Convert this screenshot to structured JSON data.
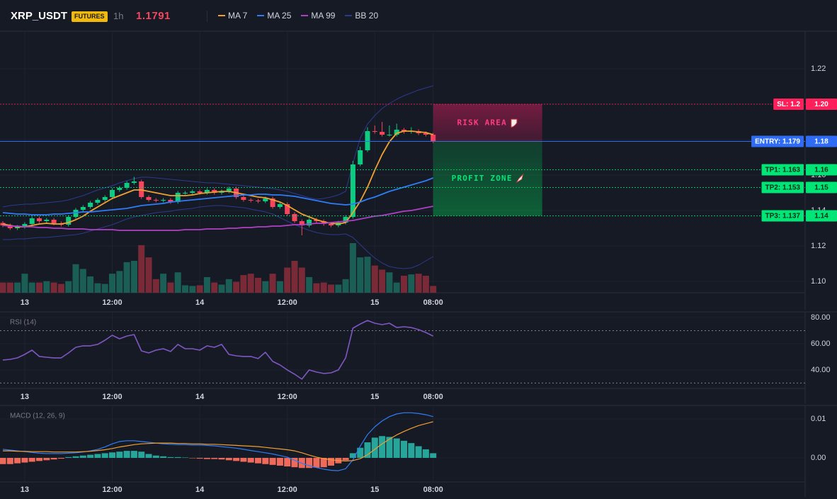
{
  "header": {
    "symbol": "XRP_USDT",
    "badge": "FUTURES",
    "interval": "1h",
    "last_price": 1.1791
  },
  "chart_data": [
    {
      "type": "candlestick",
      "categories": [
        null,
        null,
        null,
        "13",
        null,
        null,
        null,
        null,
        null,
        null,
        null,
        null,
        null,
        null,
        null,
        "12:00",
        null,
        null,
        null,
        null,
        null,
        null,
        null,
        null,
        null,
        null,
        null,
        "14",
        null,
        null,
        null,
        null,
        null,
        null,
        null,
        null,
        null,
        null,
        null,
        "12:00",
        null,
        null,
        null,
        null,
        null,
        null,
        null,
        null,
        null,
        null,
        null,
        "15",
        null,
        null,
        null,
        null,
        null,
        null,
        null,
        "08:00"
      ],
      "open": [
        1.133,
        1.1316,
        1.13,
        1.1308,
        1.1324,
        1.1356,
        1.134,
        1.1348,
        1.1328,
        1.132,
        1.1364,
        1.1404,
        1.142,
        1.1444,
        1.146,
        1.1476,
        1.1516,
        1.1528,
        1.1556,
        1.1564,
        1.1476,
        1.146,
        1.1456,
        1.146,
        1.1448,
        1.15,
        1.15,
        1.1508,
        1.15,
        1.1516,
        1.15,
        1.1508,
        1.1524,
        1.1476,
        1.146,
        1.1456,
        1.1452,
        1.1468,
        1.142,
        1.1436,
        1.138,
        1.134,
        1.1316,
        1.1348,
        1.134,
        1.1324,
        1.1316,
        1.1332,
        1.1364,
        1.166,
        1.174,
        1.1848,
        1.1844,
        1.1828,
        1.1828,
        1.1856,
        1.1844,
        1.1848,
        1.1836,
        1.1828
      ],
      "high": [
        1.134,
        1.1326,
        1.1318,
        1.1334,
        1.1366,
        1.1366,
        1.1358,
        1.1358,
        1.1338,
        1.1374,
        1.1414,
        1.143,
        1.1454,
        1.147,
        1.1486,
        1.1526,
        1.1538,
        1.1566,
        1.159,
        1.1574,
        1.1486,
        1.147,
        1.147,
        1.147,
        1.151,
        1.151,
        1.1518,
        1.1518,
        1.1526,
        1.1526,
        1.1518,
        1.1534,
        1.1534,
        1.1486,
        1.147,
        1.1466,
        1.1478,
        1.1478,
        1.1446,
        1.1446,
        1.139,
        1.135,
        1.1358,
        1.1358,
        1.135,
        1.1334,
        1.1342,
        1.1374,
        1.168,
        1.176,
        1.187,
        1.188,
        1.19,
        1.188,
        1.189,
        1.1866,
        1.187,
        1.1858,
        1.1846,
        1.1838
      ],
      "low": [
        1.1306,
        1.129,
        1.129,
        1.1298,
        1.1314,
        1.133,
        1.133,
        1.1318,
        1.131,
        1.131,
        1.1354,
        1.1394,
        1.141,
        1.1434,
        1.145,
        1.1466,
        1.1506,
        1.1518,
        1.1546,
        1.1466,
        1.145,
        1.1446,
        1.1446,
        1.1438,
        1.1438,
        1.149,
        1.149,
        1.149,
        1.149,
        1.149,
        1.149,
        1.1498,
        1.1466,
        1.145,
        1.1446,
        1.1442,
        1.1442,
        1.141,
        1.141,
        1.137,
        1.133,
        1.126,
        1.1306,
        1.133,
        1.1314,
        1.1306,
        1.1306,
        1.1322,
        1.1354,
        1.165,
        1.173,
        1.1834,
        1.1818,
        1.1818,
        1.1818,
        1.1834,
        1.1834,
        1.1826,
        1.1818,
        1.1781
      ],
      "close": [
        1.1316,
        1.13,
        1.1308,
        1.1324,
        1.1356,
        1.134,
        1.1348,
        1.1328,
        1.132,
        1.1364,
        1.1404,
        1.142,
        1.1444,
        1.146,
        1.1476,
        1.1516,
        1.1528,
        1.1556,
        1.1564,
        1.1476,
        1.146,
        1.1456,
        1.146,
        1.1448,
        1.15,
        1.15,
        1.1508,
        1.15,
        1.1516,
        1.15,
        1.1508,
        1.1524,
        1.1476,
        1.146,
        1.1456,
        1.1452,
        1.1468,
        1.142,
        1.1436,
        1.138,
        1.134,
        1.1316,
        1.1348,
        1.134,
        1.1324,
        1.1316,
        1.1332,
        1.1364,
        1.166,
        1.174,
        1.1848,
        1.1844,
        1.1828,
        1.1828,
        1.1856,
        1.1844,
        1.1848,
        1.1836,
        1.1828,
        1.1791
      ],
      "up_color": "#0ecb81",
      "down_color": "#f6465d",
      "volume": [
        15,
        15,
        15,
        28,
        15,
        15,
        17,
        15,
        13,
        17,
        42,
        35,
        24,
        14,
        13,
        28,
        32,
        45,
        47,
        70,
        52,
        20,
        28,
        15,
        30,
        11,
        10,
        11,
        23,
        15,
        12,
        20,
        16,
        26,
        28,
        22,
        17,
        28,
        17,
        37,
        47,
        37,
        23,
        14,
        15,
        12,
        12,
        20,
        73,
        52,
        53,
        40,
        34,
        30,
        15,
        25,
        27,
        28,
        25,
        10
      ],
      "volume_up_color": "#1b5e55",
      "volume_down_color": "#7a2a37",
      "series": [
        {
          "name": "MA 7",
          "color": "#f0a030",
          "values": [
            1.1324,
            1.1316,
            1.1308,
            1.1308,
            1.1316,
            1.1324,
            1.1328,
            1.1324,
            1.1324,
            1.1332,
            1.1348,
            1.1368,
            1.1396,
            1.142,
            1.1444,
            1.1468,
            1.1484,
            1.15,
            1.1516,
            1.1516,
            1.1508,
            1.15,
            1.1492,
            1.1484,
            1.1484,
            1.1484,
            1.1488,
            1.1496,
            1.15,
            1.1504,
            1.1508,
            1.1508,
            1.15,
            1.1492,
            1.1484,
            1.1476,
            1.1472,
            1.146,
            1.1448,
            1.1428,
            1.1404,
            1.138,
            1.1364,
            1.1348,
            1.1336,
            1.1328,
            1.1324,
            1.1332,
            1.1388,
            1.1452,
            1.1532,
            1.1628,
            1.1716,
            1.1788,
            1.1836,
            1.1848,
            1.1848,
            1.1844,
            1.184,
            1.1828
          ]
        },
        {
          "name": "MA 25",
          "color": "#2f7cf6",
          "values": [
            1.1388,
            1.1384,
            1.138,
            1.138,
            1.1376,
            1.1376,
            1.1376,
            1.138,
            1.138,
            1.1384,
            1.1388,
            1.1392,
            1.1392,
            1.1396,
            1.14,
            1.1404,
            1.1408,
            1.1412,
            1.142,
            1.1428,
            1.1432,
            1.1436,
            1.144,
            1.1448,
            1.1452,
            1.1456,
            1.146,
            1.1464,
            1.1468,
            1.1472,
            1.1476,
            1.148,
            1.1484,
            1.1488,
            1.1488,
            1.1492,
            1.1492,
            1.1488,
            1.1488,
            1.1484,
            1.148,
            1.1472,
            1.1464,
            1.1456,
            1.1448,
            1.144,
            1.1436,
            1.1432,
            1.1436,
            1.1448,
            1.1464,
            1.1476,
            1.1492,
            1.1508,
            1.152,
            1.1532,
            1.1544,
            1.1556,
            1.1568,
            1.1584
          ]
        },
        {
          "name": "MA 99",
          "color": "#b03fc6",
          "values": [
            1.1316,
            1.1312,
            1.1312,
            1.1308,
            1.1308,
            1.1304,
            1.1304,
            1.13,
            1.13,
            1.1296,
            1.1296,
            1.1296,
            1.1292,
            1.1292,
            1.1292,
            1.1292,
            1.1288,
            1.1288,
            1.1288,
            1.1288,
            1.1288,
            1.1288,
            1.1288,
            1.1288,
            1.1288,
            1.1292,
            1.1292,
            1.1292,
            1.1296,
            1.1296,
            1.1296,
            1.13,
            1.13,
            1.1304,
            1.1304,
            1.1308,
            1.1308,
            1.1312,
            1.1312,
            1.1316,
            1.132,
            1.132,
            1.1324,
            1.1328,
            1.1328,
            1.1332,
            1.1336,
            1.134,
            1.1344,
            1.1352,
            1.136,
            1.1368,
            1.1372,
            1.138,
            1.1388,
            1.1396,
            1.14,
            1.1408,
            1.1416,
            1.1424
          ]
        },
        {
          "name": "BB 20",
          "color": "#2c3a8c",
          "upper": [
            1.142,
            1.1428,
            1.1432,
            1.1436,
            1.1436,
            1.144,
            1.1444,
            1.1448,
            1.1452,
            1.146,
            1.1472,
            1.1484,
            1.15,
            1.1516,
            1.1528,
            1.154,
            1.1556,
            1.1568,
            1.158,
            1.1588,
            1.1588,
            1.1584,
            1.158,
            1.1576,
            1.1572,
            1.1568,
            1.1564,
            1.156,
            1.1556,
            1.1556,
            1.1552,
            1.1548,
            1.1544,
            1.154,
            1.1536,
            1.1532,
            1.1528,
            1.1524,
            1.1516,
            1.1508,
            1.1496,
            1.1484,
            1.1472,
            1.1464,
            1.1468,
            1.1476,
            1.1488,
            1.1508,
            1.1668,
            1.1808,
            1.1888,
            1.1936,
            1.1976,
            1.2004,
            1.2028,
            1.2048,
            1.2064,
            1.208,
            1.2092,
            1.2104
          ],
          "lower": [
            1.1236,
            1.1236,
            1.124,
            1.124,
            1.1244,
            1.1248,
            1.1248,
            1.1252,
            1.1256,
            1.126,
            1.1264,
            1.1272,
            1.1284,
            1.1296,
            1.1308,
            1.132,
            1.1336,
            1.1352,
            1.1364,
            1.1372,
            1.138,
            1.1388,
            1.1392,
            1.1396,
            1.1404,
            1.1408,
            1.1412,
            1.142,
            1.1424,
            1.1428,
            1.1428,
            1.1424,
            1.142,
            1.1416,
            1.1408,
            1.14,
            1.1392,
            1.138,
            1.136,
            1.134,
            1.132,
            1.1304,
            1.1288,
            1.1276,
            1.1268,
            1.1264,
            1.1264,
            1.1268,
            1.1248,
            1.1208,
            1.1168,
            1.1132,
            1.1104,
            1.1084,
            1.1076,
            1.1072,
            1.1076,
            1.1092,
            1.1116,
            1.114
          ]
        }
      ],
      "ylim": [
        1.0936,
        1.2408
      ],
      "yticks": [
        {
          "value": 1.1,
          "label": "1.10"
        },
        1.12,
        1.14,
        1.16,
        1.18,
        {
          "value": 1.2,
          "label": "1.20"
        },
        1.22
      ],
      "grid": true,
      "levels": [
        {
          "label": "SL: 1.2",
          "value": 1.2,
          "value_label": "1.20",
          "color": "#ff1f5a",
          "style": "dotted"
        },
        {
          "label": "ENTRY: 1.179",
          "value": 1.179,
          "value_label": "1.18",
          "color": "#2f6cf6",
          "style": "solid"
        },
        {
          "label": "TP1: 1.163",
          "value": 1.163,
          "value_label": "1.16",
          "color": "#00e676",
          "style": "dotted"
        },
        {
          "label": "TP2: 1.153",
          "value": 1.153,
          "value_label": "1.15",
          "color": "#00e676",
          "style": "dotted"
        },
        {
          "label": "TP3: 1.137",
          "value": 1.137,
          "value_label": "1.14",
          "color": "#00e676",
          "style": "dotted"
        }
      ],
      "zones": [
        {
          "label": "RISK AREA",
          "color": "#e91e63"
        },
        {
          "label": "PROFIT ZONE",
          "color": "#00c853"
        }
      ]
    },
    {
      "type": "line",
      "title": "RSI (14)",
      "series": [
        {
          "color": "#7e57c2",
          "values": [
            47.6,
            48.1,
            49.2,
            51.9,
            55.1,
            50.3,
            49.7,
            49.2,
            49.2,
            53.0,
            57.3,
            58.4,
            58.4,
            59.5,
            62.7,
            66.5,
            63.8,
            65.9,
            67.0,
            54.6,
            53.0,
            55.1,
            56.2,
            54.1,
            59.5,
            56.2,
            56.2,
            55.1,
            58.4,
            57.3,
            59.5,
            51.9,
            50.8,
            50.3,
            50.3,
            48.7,
            53.5,
            46.5,
            43.8,
            40.0,
            36.8,
            33.0,
            40.0,
            38.4,
            37.3,
            37.8,
            40.0,
            49.2,
            71.9,
            75.1,
            77.8,
            75.7,
            74.6,
            75.7,
            72.4,
            73.0,
            72.4,
            70.8,
            68.6,
            65.9
          ]
        }
      ],
      "ylim": [
        25.9,
        83.8
      ],
      "yticks": [
        {
          "value": 40,
          "label": "40.00"
        },
        {
          "value": 60,
          "label": "60.00"
        },
        {
          "value": 80,
          "label": "80.00"
        }
      ],
      "levels": [
        70,
        30
      ],
      "grid": true
    },
    {
      "type": "macd",
      "title": "MACD (12, 26, 9)",
      "histogram": {
        "up_color": "#26a69a",
        "down_color": "#ef6a5a",
        "values": [
          -0.0016,
          -0.0016,
          -0.0014,
          -0.0012,
          -0.001,
          -0.0008,
          -0.0006,
          -0.0004,
          -0.0002,
          0.0002,
          0.0004,
          0.0006,
          0.0008,
          0.001,
          0.0012,
          0.0014,
          0.0016,
          0.0018,
          0.0018,
          0.0016,
          0.001,
          0.0006,
          0.0004,
          0.0002,
          0.0002,
          0.0001,
          -0.0001,
          -0.0002,
          -0.0003,
          -0.0003,
          -0.0004,
          -0.0006,
          -0.0008,
          -0.001,
          -0.0012,
          -0.0014,
          -0.0016,
          -0.0018,
          -0.002,
          -0.0022,
          -0.0024,
          -0.0026,
          -0.0026,
          -0.0025,
          -0.0024,
          -0.002,
          -0.0014,
          -0.0006,
          0.0012,
          0.0026,
          0.004,
          0.0052,
          0.0056,
          0.0054,
          0.005,
          0.0044,
          0.0038,
          0.003,
          0.0022,
          0.0012
        ]
      },
      "series": [
        {
          "color": "#2f7cf6",
          "values": [
            0.0022,
            0.002,
            0.0018,
            0.0016,
            0.0014,
            0.0012,
            0.0011,
            0.0011,
            0.0011,
            0.0012,
            0.0013,
            0.0015,
            0.0018,
            0.0022,
            0.0028,
            0.0036,
            0.0042,
            0.0044,
            0.0044,
            0.0042,
            0.004,
            0.0038,
            0.0036,
            0.0035,
            0.0034,
            0.0034,
            0.0033,
            0.0033,
            0.0032,
            0.0031,
            0.0029,
            0.0027,
            0.0025,
            0.0022,
            0.0019,
            0.0016,
            0.0013,
            0.001,
            0.0006,
            0.0002,
            -0.0006,
            -0.0014,
            -0.002,
            -0.0025,
            -0.0029,
            -0.0032,
            -0.0033,
            -0.0028,
            -0.0005,
            0.003,
            0.006,
            0.008,
            0.0095,
            0.0106,
            0.0113,
            0.0116,
            0.0116,
            0.0114,
            0.0111,
            0.0106
          ]
        },
        {
          "color": "#f0a030",
          "values": [
            0.0018,
            0.0018,
            0.0017,
            0.0017,
            0.0016,
            0.0016,
            0.0016,
            0.0015,
            0.0015,
            0.0015,
            0.0015,
            0.0016,
            0.0017,
            0.0019,
            0.0021,
            0.0024,
            0.0028,
            0.0031,
            0.0034,
            0.0036,
            0.0037,
            0.0038,
            0.0038,
            0.0038,
            0.0037,
            0.0037,
            0.0036,
            0.0036,
            0.0035,
            0.0035,
            0.0034,
            0.0033,
            0.0032,
            0.0031,
            0.003,
            0.0029,
            0.0027,
            0.0025,
            0.0023,
            0.0021,
            0.0018,
            0.0013,
            0.0007,
            0.0002,
            -0.0002,
            -0.0005,
            -0.0007,
            -0.0008,
            -0.0007,
            -0.0002,
            0.0008,
            0.0022,
            0.0036,
            0.0048,
            0.0059,
            0.0068,
            0.0076,
            0.0083,
            0.0088,
            0.0093
          ]
        }
      ],
      "ylim": [
        -0.0062,
        0.0133
      ],
      "yticks": [
        {
          "value": 0,
          "label": "0.00"
        },
        0.01
      ],
      "grid": true
    }
  ]
}
